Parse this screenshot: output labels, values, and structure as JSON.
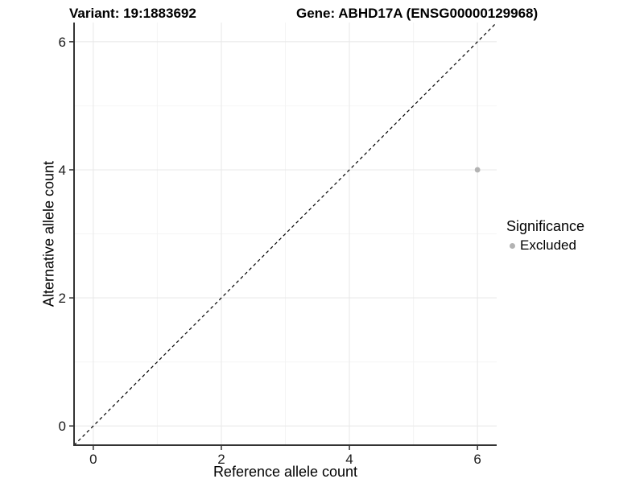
{
  "chart_data": {
    "type": "scatter",
    "title_left": "Variant: 19:1883692",
    "title_right": "Gene: ABHD17A (ENSG00000129968)",
    "xlabel": "Reference allele count",
    "ylabel": "Alternative allele count",
    "xlim": [
      -0.3,
      6.3
    ],
    "ylim": [
      -0.3,
      6.3
    ],
    "x_ticks": [
      0,
      2,
      4,
      6
    ],
    "y_ticks": [
      0,
      2,
      4,
      6
    ],
    "x_minor_ticks": [
      1,
      3,
      5
    ],
    "y_minor_ticks": [
      1,
      3,
      5
    ],
    "grid": true,
    "points": [
      {
        "x": 6,
        "y": 4,
        "series": "Excluded"
      }
    ],
    "identity_line": {
      "slope": 1,
      "intercept": 0,
      "style": "dashed"
    },
    "legend": {
      "title": "Significance",
      "position": "right",
      "entries": [
        {
          "label": "Excluded",
          "color": "#b3b3b3"
        }
      ]
    },
    "colors": {
      "point": "#b3b3b3",
      "grid_major": "#e8e8e8",
      "grid_minor": "#f4f4f4",
      "axis_line": "#333333",
      "tick_mark": "#333333",
      "tick_label": "#1a1a1a",
      "dashed_line": "#000000"
    }
  }
}
